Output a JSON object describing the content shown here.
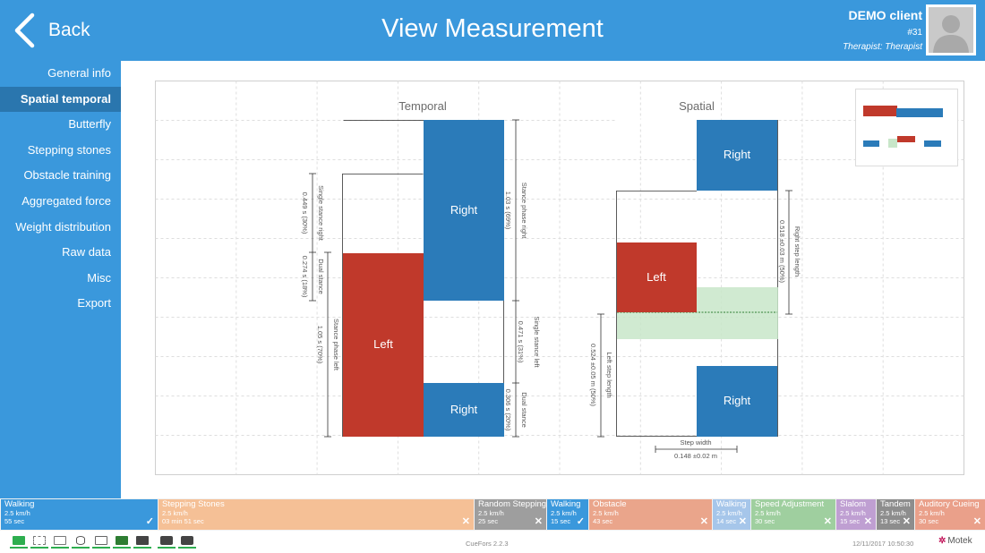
{
  "header": {
    "back_label": "Back",
    "title": "View Measurement",
    "client_name": "DEMO client",
    "client_id": "#31",
    "therapist": "Therapist: Therapist"
  },
  "sidebar": {
    "items": [
      {
        "label": "General info",
        "active": false
      },
      {
        "label": "Spatial temporal",
        "active": true
      },
      {
        "label": "Butterfly",
        "active": false
      },
      {
        "label": "Stepping stones",
        "active": false
      },
      {
        "label": "Obstacle training",
        "active": false
      },
      {
        "label": "Aggregated force",
        "active": false
      },
      {
        "label": "Weight distribution",
        "active": false
      },
      {
        "label": "Raw data",
        "active": false
      },
      {
        "label": "Misc",
        "active": false
      },
      {
        "label": "Export",
        "active": false
      }
    ]
  },
  "chart_data": {
    "type": "bar",
    "panels": [
      {
        "title": "Temporal",
        "blocks": [
          {
            "label": "Right",
            "color": "#2b7bb9"
          },
          {
            "label": "Left",
            "color": "#c0392b"
          },
          {
            "label": "Right",
            "color": "#2b7bb9"
          }
        ],
        "annotations": [
          "Single stance right",
          "0.449 s (30%)",
          "Dual stance",
          "0.274 s (18%)",
          "Stance phase left",
          "1.05 s (70%)",
          "Stance phase right",
          "1.03 s (69%)",
          "Single stance left",
          "0.471 s (31%)",
          "Dual stance",
          "0.306 s (20%)"
        ]
      },
      {
        "title": "Spatial",
        "blocks": [
          {
            "label": "Right",
            "color": "#2b7bb9"
          },
          {
            "label": "Left",
            "color": "#c0392b"
          },
          {
            "label": "Right",
            "color": "#2b7bb9"
          }
        ],
        "annotations": [
          "Right step length",
          "0.518 ±0.03 m (50%)",
          "Left step length",
          "0.524 ±0.05 m (50%)",
          "Step width",
          "0.148 ±0.02 m"
        ]
      }
    ]
  },
  "trials": [
    {
      "name": "Walking",
      "speed": "2.5 km/h",
      "duration": "55 sec",
      "color": "#3a98dc",
      "mark": "✓"
    },
    {
      "name": "Stepping Stones",
      "speed": "2.5 km/h",
      "duration": "03 min 51 sec",
      "color": "#f5c096",
      "mark": "✕"
    },
    {
      "name": "Random Stepping",
      "speed": "2.5 km/h",
      "duration": "25 sec",
      "color": "#9e9e9e",
      "mark": "✕"
    },
    {
      "name": "Walking",
      "speed": "2.5 km/h",
      "duration": "15 sec",
      "color": "#3a98dc",
      "mark": "✓"
    },
    {
      "name": "Obstacle",
      "speed": "2.5 km/h",
      "duration": "43 sec",
      "color": "#eaa58b",
      "mark": "✕"
    },
    {
      "name": "Walking",
      "speed": "2.5 km/h",
      "duration": "14 sec",
      "color": "#a6c6ea",
      "mark": "✕"
    },
    {
      "name": "Speed Adjustment",
      "speed": "2.5 km/h",
      "duration": "30 sec",
      "color": "#9fcf9f",
      "mark": "✕"
    },
    {
      "name": "Slalom",
      "speed": "2.5 km/h",
      "duration": "15 sec",
      "color": "#bf9fd2",
      "mark": "✕"
    },
    {
      "name": "Tandem",
      "speed": "2.5 km/h",
      "duration": "13 sec",
      "color": "#8d8d8d",
      "mark": "✕"
    },
    {
      "name": "Auditory Cueing",
      "speed": "2.5 km/h",
      "duration": "30 sec",
      "color": "#eaa08a",
      "mark": "✕"
    }
  ],
  "status": {
    "icons": [
      "treadmill-icon",
      "track-icon",
      "screen-icon",
      "database-icon",
      "robot-icon",
      "board-icon",
      "keyboard-icon",
      "camera-icon",
      "camera-icon"
    ],
    "version": "CueFors 2.2.3",
    "datetime": "12/11/2017 10:50:30",
    "brand": "Motek"
  }
}
